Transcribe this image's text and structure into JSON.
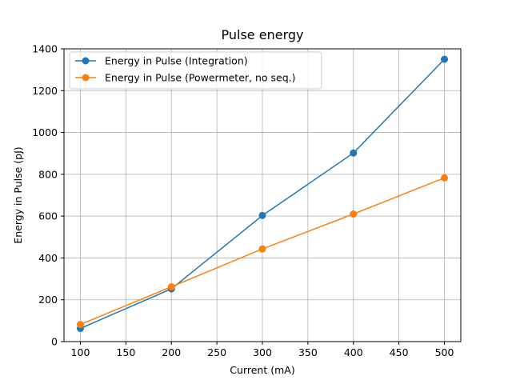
{
  "chart_data": {
    "type": "line",
    "title": "Pulse energy",
    "xlabel": "Current (mA)",
    "ylabel": "Energy in Pulse (pJ)",
    "x": [
      100,
      200,
      300,
      400,
      500
    ],
    "series": [
      {
        "name": "Energy in Pulse (Integration)",
        "values": [
          63,
          252,
          603,
          902,
          1350
        ],
        "color": "#1f77b4"
      },
      {
        "name": "Energy in Pulse (Powermeter, no seq.)",
        "values": [
          82,
          262,
          443,
          610,
          783
        ],
        "color": "#ff7f0e"
      }
    ],
    "xlim": [
      82,
      518
    ],
    "ylim": [
      0,
      1400
    ],
    "xticks": [
      100,
      150,
      200,
      250,
      300,
      350,
      400,
      450,
      500
    ],
    "yticks": [
      0,
      200,
      400,
      600,
      800,
      1000,
      1200,
      1400
    ],
    "grid": true,
    "legend_position": "top-left",
    "marker": "circle"
  }
}
